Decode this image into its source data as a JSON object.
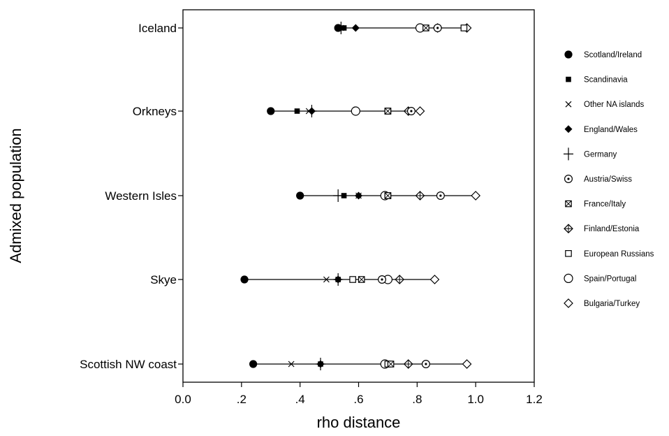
{
  "chart_data": {
    "type": "scatter",
    "orientation": "horizontal-dot-range",
    "xlabel": "rho distance",
    "ylabel": "Admixed population",
    "xlim": [
      0.0,
      1.2
    ],
    "xticks": [
      {
        "value": 0.0,
        "label": "0.0"
      },
      {
        "value": 0.2,
        "label": ".2"
      },
      {
        "value": 0.4,
        "label": ".4"
      },
      {
        "value": 0.6,
        "label": ".6"
      },
      {
        "value": 0.8,
        "label": ".8"
      },
      {
        "value": 1.0,
        "label": "1.0"
      },
      {
        "value": 1.2,
        "label": "1.2"
      }
    ],
    "categories": [
      "Iceland",
      "Orkneys",
      "Western Isles",
      "Skye",
      "Scottish NW coast"
    ],
    "legend_position": "right",
    "grid": false,
    "series": [
      {
        "name": "Scotland/Ireland",
        "marker": "filled-circle",
        "values": [
          0.53,
          0.3,
          0.4,
          0.21,
          0.24
        ]
      },
      {
        "name": "Scandinavia",
        "marker": "filled-square",
        "values": [
          0.55,
          0.39,
          0.55,
          0.53,
          0.47
        ]
      },
      {
        "name": "Other NA islands",
        "marker": "x",
        "values": [
          0.54,
          0.43,
          0.6,
          0.49,
          0.37
        ]
      },
      {
        "name": "England/Wales",
        "marker": "filled-diamond",
        "values": [
          0.59,
          0.44,
          0.6,
          0.53,
          0.47
        ]
      },
      {
        "name": "Germany",
        "marker": "plus",
        "values": [
          0.54,
          0.44,
          0.53,
          0.53,
          0.47
        ]
      },
      {
        "name": "Austria/Swiss",
        "marker": "circle-dot",
        "values": [
          0.87,
          0.78,
          0.88,
          0.68,
          0.83
        ]
      },
      {
        "name": "France/Italy",
        "marker": "square-x",
        "values": [
          0.83,
          0.7,
          0.7,
          0.61,
          0.71
        ]
      },
      {
        "name": "Finland/Estonia",
        "marker": "diamond-plus",
        "values": [
          0.87,
          0.77,
          0.81,
          0.74,
          0.77
        ]
      },
      {
        "name": "European Russians",
        "marker": "open-square",
        "values": [
          0.96,
          0.7,
          0.7,
          0.58,
          0.7
        ]
      },
      {
        "name": "Spain/Portugal",
        "marker": "open-circle",
        "values": [
          0.81,
          0.59,
          0.69,
          0.7,
          0.69
        ]
      },
      {
        "name": "Bulgaria/Turkey",
        "marker": "open-diamond",
        "values": [
          0.97,
          0.81,
          1.0,
          0.86,
          0.97
        ]
      }
    ]
  }
}
